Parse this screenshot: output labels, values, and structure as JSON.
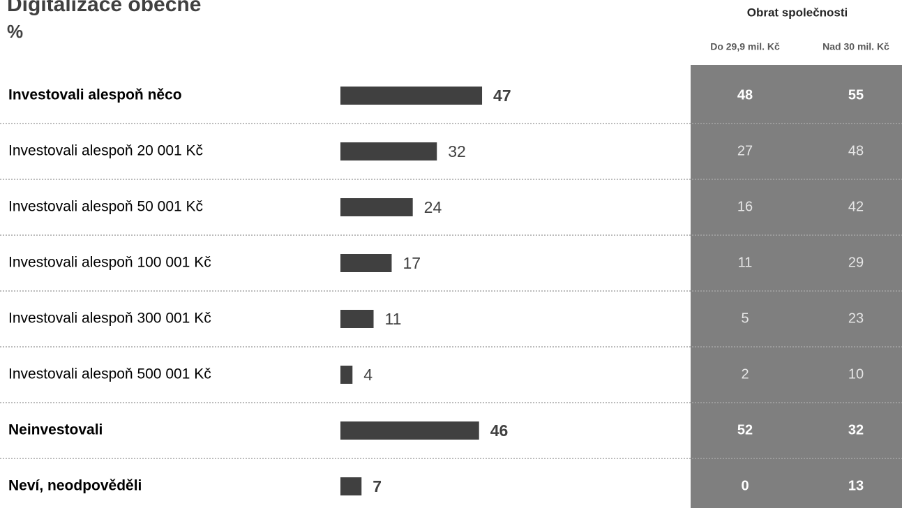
{
  "chart_data": {
    "type": "bar",
    "orientation": "horizontal",
    "title": "Digitalizace obecně",
    "subtitle": "%",
    "categories": [
      "Investovali alespoň něco",
      "Investovali alespoň 20 001 Kč",
      "Investovali alespoň 50 001 Kč",
      "Investovali alespoň 100 001 Kč",
      "Investovali alespoň 300 001 Kč",
      "Investovali alespoň 500 001 Kč",
      "Neinvestovali",
      "Neví, neodpověděli"
    ],
    "values": [
      47,
      32,
      24,
      17,
      11,
      4,
      46,
      7
    ],
    "bold": [
      true,
      false,
      false,
      false,
      false,
      false,
      true,
      true
    ],
    "color": "#404040",
    "table": {
      "title": "Obrat společnosti",
      "columns": [
        "Do 29,9 mil. Kč",
        "Nad 30 mil. Kč"
      ],
      "rows": [
        [
          48,
          55
        ],
        [
          27,
          48
        ],
        [
          16,
          42
        ],
        [
          11,
          29
        ],
        [
          5,
          23
        ],
        [
          2,
          10
        ],
        [
          52,
          32
        ],
        [
          0,
          13
        ]
      ],
      "background": "#7f7f7f"
    }
  }
}
